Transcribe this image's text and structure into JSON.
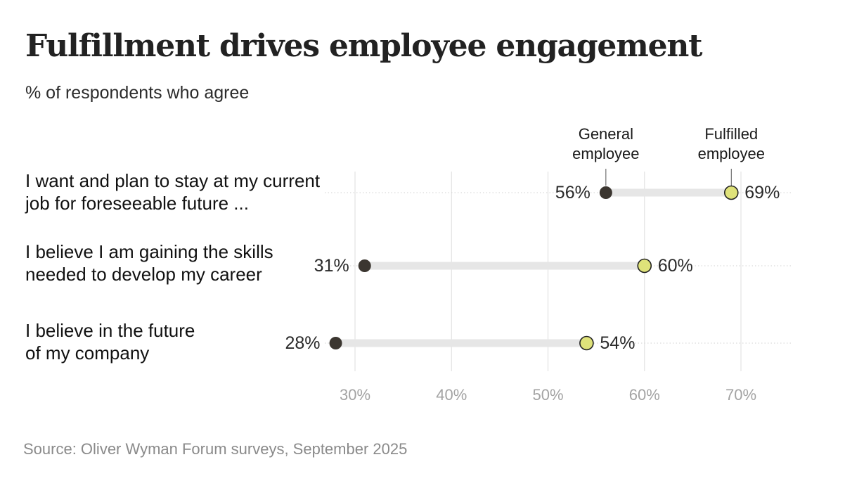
{
  "title": "Fulfillment drives employee engagement",
  "subtitle": "% of respondents who agree",
  "source": "Source: Oliver Wyman Forum surveys, September 2025",
  "chart_data": {
    "type": "dumbbell",
    "series": [
      {
        "name": "General employee",
        "name_lines": [
          "General",
          "employee"
        ],
        "color": "#3b3630",
        "values": [
          56,
          31,
          28
        ]
      },
      {
        "name": "Fulfilled employee",
        "name_lines": [
          "Fulfilled",
          "employee"
        ],
        "color": "#dfe27a",
        "values": [
          69,
          60,
          54
        ]
      }
    ],
    "categories": [
      [
        "I want and plan to stay at my current",
        "job for foreseeable future ..."
      ],
      [
        "I believe I am gaining the skills",
        "needed to develop my career"
      ],
      [
        "I believe in the future",
        "of my company"
      ]
    ],
    "xticks": [
      30,
      40,
      50,
      60,
      70
    ],
    "xtick_labels": [
      "30%",
      "40%",
      "50%",
      "60%",
      "70%"
    ],
    "value_suffix": "%",
    "xlim": [
      25,
      75
    ],
    "grid": true,
    "legend": "annotations above first row"
  }
}
